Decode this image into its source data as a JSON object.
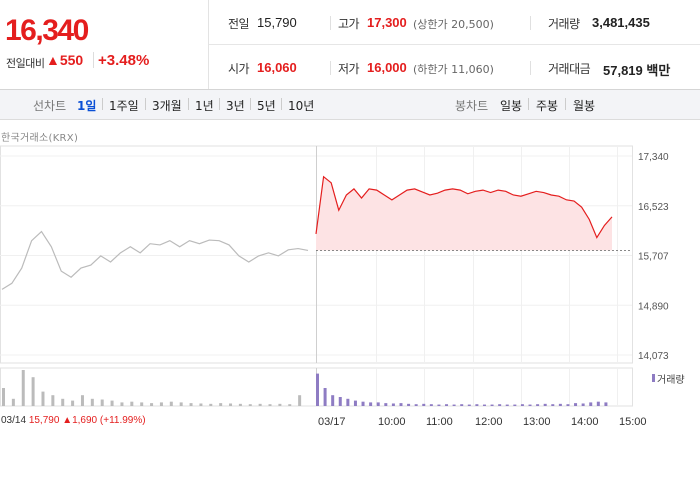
{
  "quote": {
    "price": "16,340",
    "change_label": "전일대비",
    "change_arrow": "▲",
    "change_value": "550",
    "change_percent": "+3.48%",
    "colors": {
      "up": "#e41e1e",
      "accent": "#0a4fd6"
    }
  },
  "stats": {
    "prev_close": {
      "label": "전일",
      "value": "15,790"
    },
    "high": {
      "label": "고가",
      "value": "17,300",
      "sub": "(상한가 20,500)"
    },
    "volume": {
      "label": "거래량",
      "value": "3,481,435"
    },
    "open": {
      "label": "시가",
      "value": "16,060"
    },
    "low": {
      "label": "저가",
      "value": "16,000",
      "sub": "(하한가 11,060)"
    },
    "trade_amount": {
      "label": "거래대금",
      "value": "57,819 백만"
    }
  },
  "tabs": {
    "line_chart_label": "선차트",
    "periods": [
      "1일",
      "1주일",
      "3개월",
      "1년",
      "3년",
      "5년",
      "10년"
    ],
    "active_period": "1일",
    "candle_label": "봉차트",
    "candles": [
      "일봉",
      "주봉",
      "월봉"
    ]
  },
  "chart": {
    "market_label": "한국거래소(KRX)",
    "volume_legend": "거래량",
    "footer_summary": {
      "date": "03/14",
      "close": "15,790",
      "arrow": "▲",
      "change": "1,690",
      "pct": "(+11.99%)"
    }
  },
  "chart_data": {
    "type": "line",
    "y_ticks": [
      "17,340",
      "16,523",
      "15,707",
      "14,890",
      "14,073"
    ],
    "x_ticks": [
      "03/17",
      "10:00",
      "11:00",
      "12:00",
      "13:00",
      "14:00",
      "15:00"
    ],
    "ylim": [
      14073,
      17340
    ],
    "reference_line": 15790,
    "series": [
      {
        "period": "prev",
        "color": "#bbbbbb",
        "values": [
          15150,
          15250,
          15500,
          15950,
          16100,
          15850,
          15450,
          15350,
          15500,
          15550,
          15700,
          15600,
          15750,
          15850,
          15750,
          15900,
          15880,
          15950,
          15850,
          15950,
          15900,
          15960,
          15950,
          15880,
          15700,
          15600,
          15700,
          15750,
          15700,
          15800,
          15820,
          15790
        ]
      },
      {
        "period": "today",
        "color": "#e41e1e",
        "values": [
          16060,
          17000,
          16900,
          16450,
          16700,
          16800,
          16650,
          16800,
          16780,
          16700,
          16620,
          16700,
          16780,
          16800,
          16750,
          16700,
          16730,
          16780,
          16800,
          16780,
          16720,
          16760,
          16780,
          16740,
          16780,
          16760,
          16700,
          16680,
          16720,
          16760,
          16740,
          16700,
          16680,
          16620,
          16600,
          16500,
          16300,
          16000,
          16200,
          16340
        ]
      }
    ],
    "volume": {
      "prev": [
        0.5,
        0.2,
        1.0,
        0.8,
        0.4,
        0.3,
        0.2,
        0.15,
        0.3,
        0.2,
        0.18,
        0.15,
        0.1,
        0.12,
        0.1,
        0.08,
        0.1,
        0.12,
        0.1,
        0.08,
        0.07,
        0.06,
        0.08,
        0.07,
        0.06,
        0.05,
        0.06,
        0.05,
        0.06,
        0.05,
        0.3
      ],
      "today": [
        0.9,
        0.5,
        0.3,
        0.25,
        0.2,
        0.15,
        0.12,
        0.1,
        0.1,
        0.08,
        0.07,
        0.08,
        0.06,
        0.05,
        0.06,
        0.05,
        0.04,
        0.05,
        0.04,
        0.05,
        0.04,
        0.05,
        0.04,
        0.04,
        0.05,
        0.04,
        0.04,
        0.05,
        0.04,
        0.05,
        0.06,
        0.05,
        0.06,
        0.05,
        0.08,
        0.07,
        0.1,
        0.12,
        0.1
      ],
      "colors": {
        "prev": "#bbbbbb",
        "today": "#8e7cc3"
      }
    }
  }
}
